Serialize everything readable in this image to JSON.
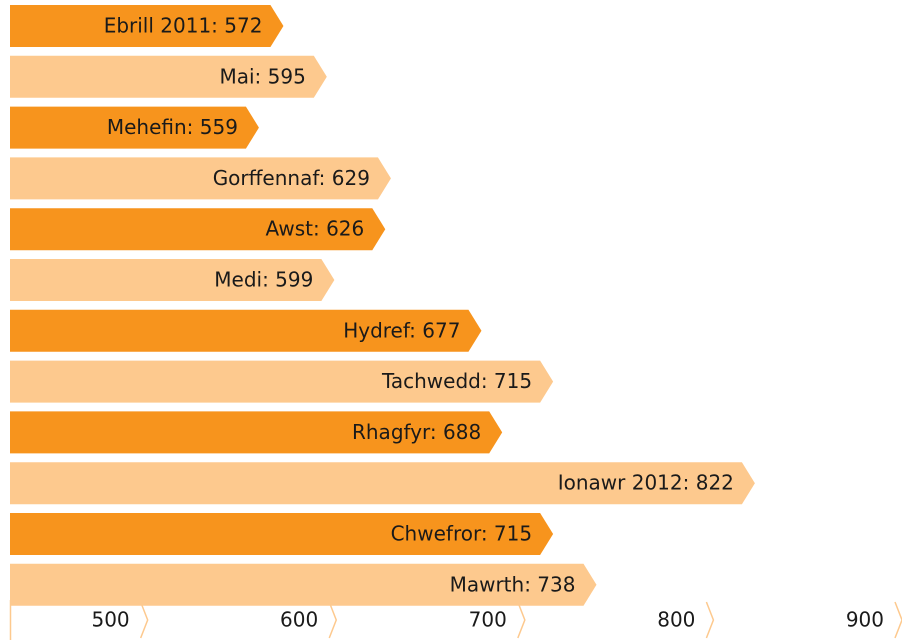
{
  "chart_data": {
    "type": "bar",
    "orientation": "horizontal",
    "value_labels": [
      "Ebrill 2011: 572",
      "Mai: 595",
      "Mehefin: 559",
      "Gorffennaf: 629",
      "Awst: 626",
      "Medi: 599",
      "Hydref: 677",
      "Tachwedd: 715",
      "Rhagfyr: 688",
      "Ionawr 2012: 822",
      "Chwefror: 715",
      "Mawrth: 738"
    ],
    "values": [
      572,
      595,
      559,
      629,
      626,
      599,
      677,
      715,
      688,
      822,
      715,
      738
    ],
    "colors": [
      "#f7941d",
      "#fdc98e"
    ],
    "xlim": [
      427,
      900
    ],
    "xticks": [
      500,
      600,
      700,
      800,
      900
    ]
  }
}
